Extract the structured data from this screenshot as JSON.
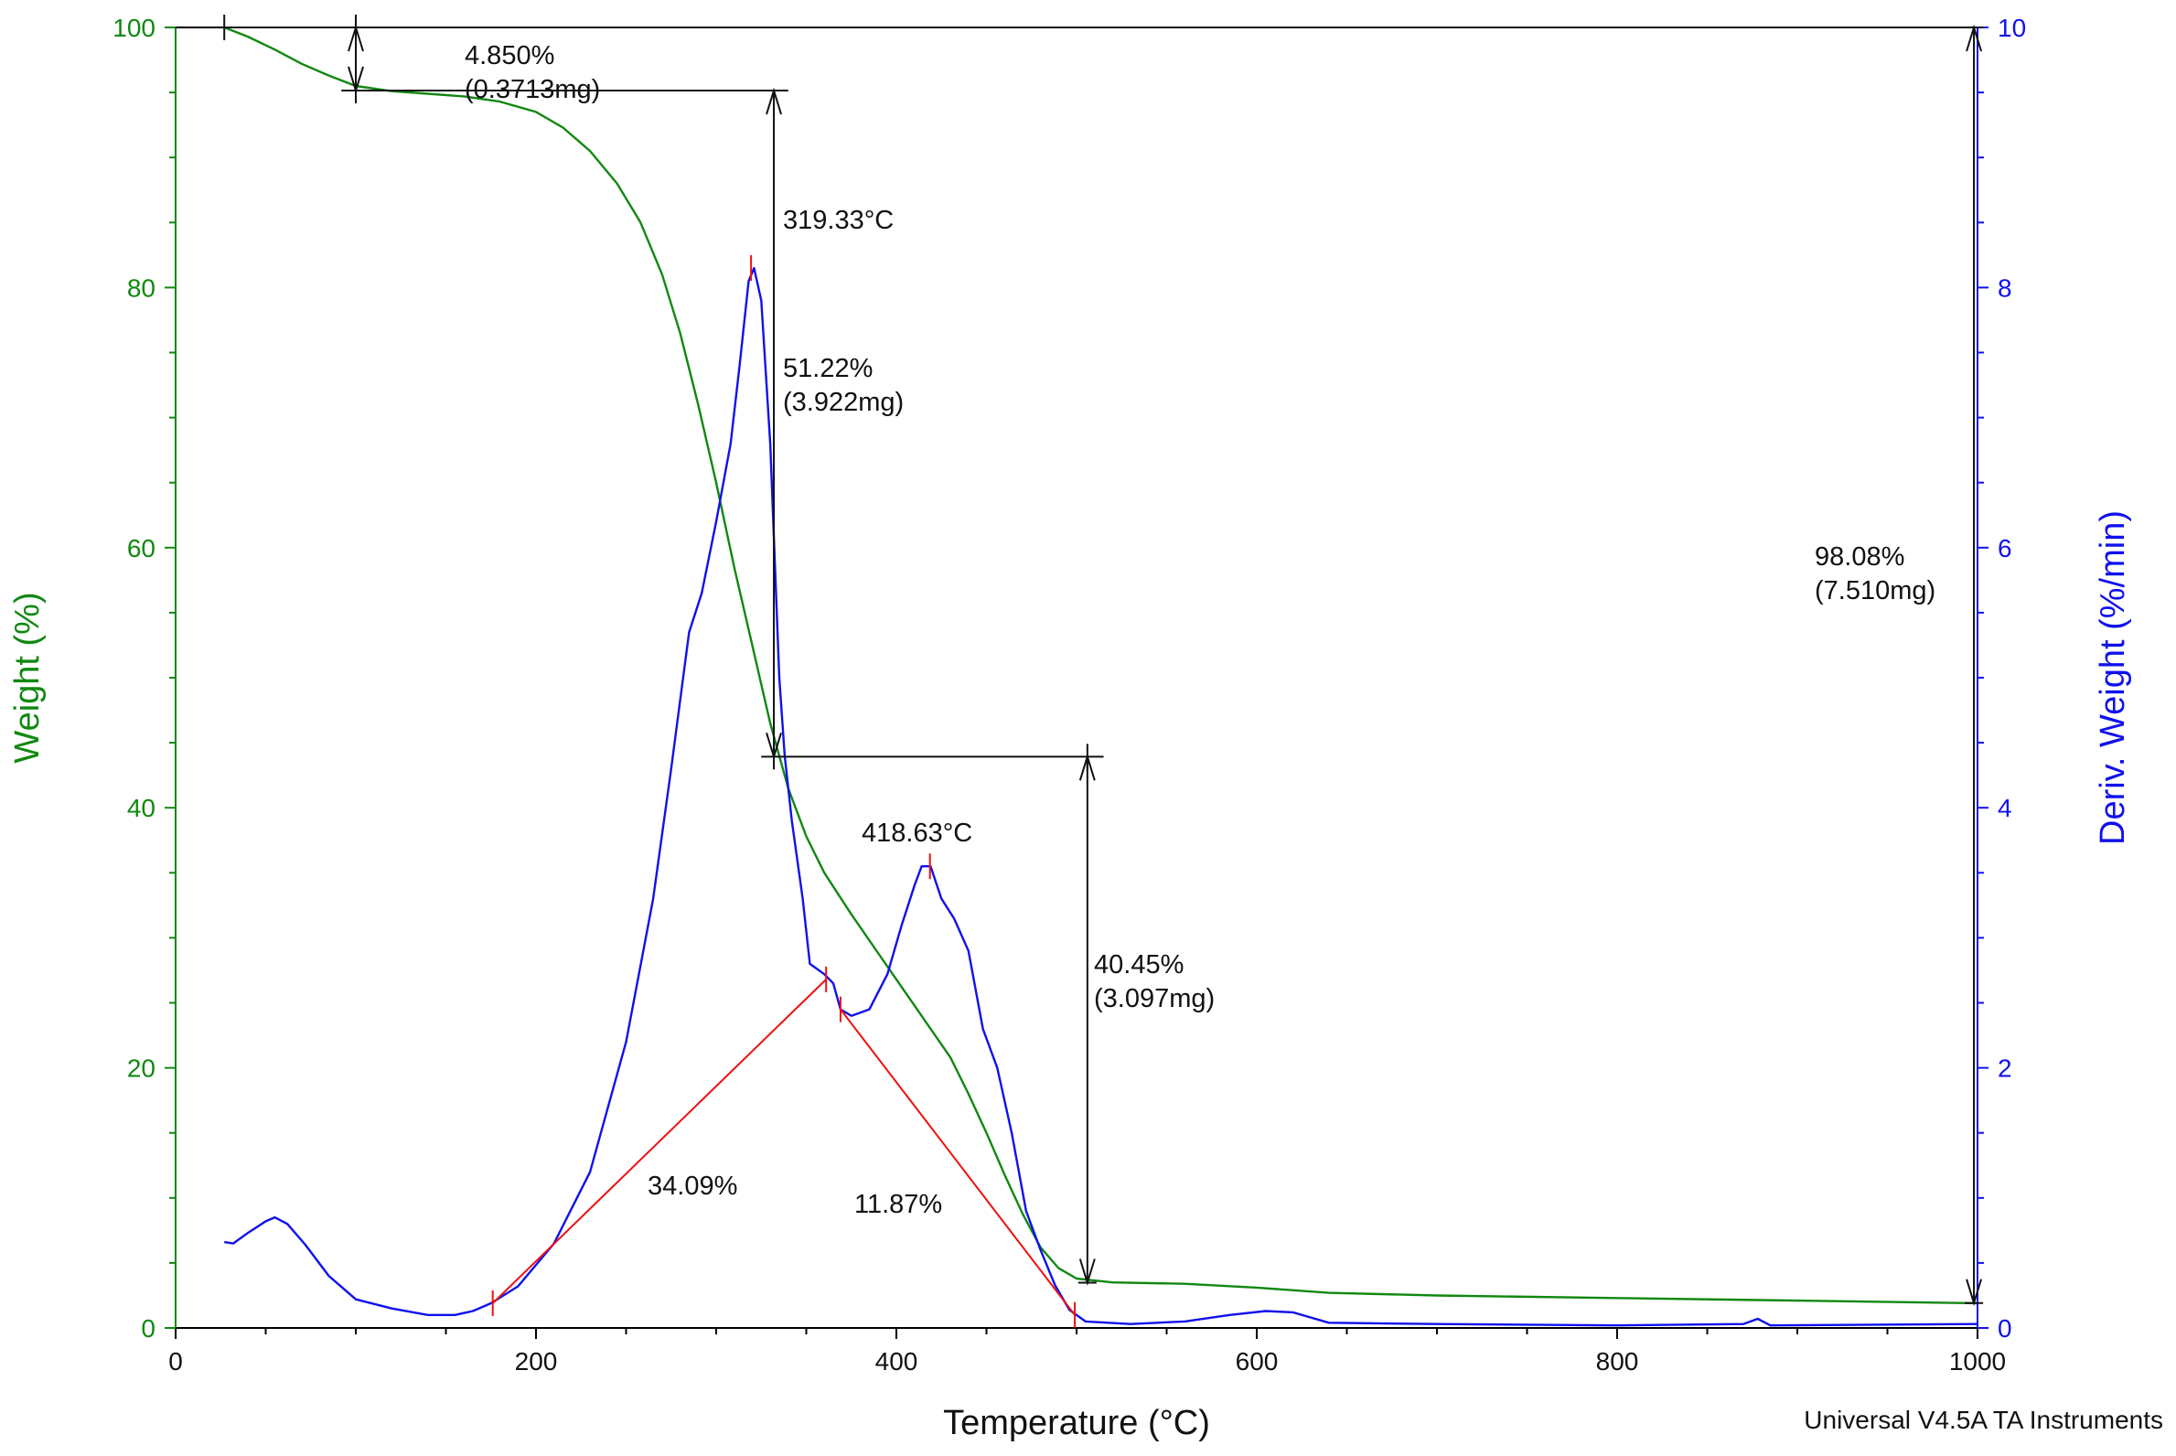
{
  "chart_data": {
    "type": "line",
    "xlabel": "Temperature (°C)",
    "ylabel_left": "Weight (%)",
    "ylabel_right": "Deriv. Weight (%/min)",
    "xlim": [
      0,
      1000
    ],
    "ylim_left": [
      0,
      100
    ],
    "ylim_right": [
      0,
      10
    ],
    "x_ticks": [
      0,
      200,
      400,
      600,
      800,
      1000
    ],
    "y_left_ticks": [
      0,
      20,
      40,
      60,
      80,
      100
    ],
    "y_right_ticks": [
      0,
      2,
      4,
      6,
      8,
      10
    ],
    "footer": "Universal V4.5A TA Instruments",
    "colors": {
      "weight": "#118811",
      "deriv": "#1010ee",
      "construct": "#ee1111",
      "annotation": "#111111"
    },
    "series": [
      {
        "name": "Weight",
        "axis": "left",
        "color": "#118811",
        "points": [
          [
            27,
            100
          ],
          [
            40,
            99.3
          ],
          [
            55,
            98.3
          ],
          [
            70,
            97.2
          ],
          [
            85,
            96.3
          ],
          [
            100,
            95.5
          ],
          [
            120,
            95.1
          ],
          [
            140,
            94.9
          ],
          [
            160,
            94.7
          ],
          [
            180,
            94.3
          ],
          [
            200,
            93.5
          ],
          [
            215,
            92.3
          ],
          [
            230,
            90.5
          ],
          [
            245,
            88.0
          ],
          [
            258,
            85.0
          ],
          [
            270,
            81.0
          ],
          [
            280,
            76.5
          ],
          [
            290,
            71.0
          ],
          [
            300,
            65.0
          ],
          [
            310,
            58.5
          ],
          [
            320,
            52.5
          ],
          [
            330,
            46.5
          ],
          [
            340,
            41.5
          ],
          [
            350,
            37.8
          ],
          [
            360,
            35.0
          ],
          [
            375,
            31.8
          ],
          [
            390,
            28.8
          ],
          [
            400,
            26.8
          ],
          [
            410,
            24.8
          ],
          [
            420,
            22.8
          ],
          [
            430,
            20.8
          ],
          [
            440,
            18.0
          ],
          [
            450,
            15.0
          ],
          [
            460,
            11.8
          ],
          [
            470,
            8.8
          ],
          [
            480,
            6.2
          ],
          [
            490,
            4.6
          ],
          [
            500,
            3.8
          ],
          [
            520,
            3.5
          ],
          [
            560,
            3.4
          ],
          [
            600,
            3.1
          ],
          [
            640,
            2.7
          ],
          [
            700,
            2.5
          ],
          [
            800,
            2.3
          ],
          [
            900,
            2.1
          ],
          [
            1000,
            1.9
          ]
        ]
      },
      {
        "name": "Deriv. Weight",
        "axis": "right",
        "color": "#1010ee",
        "points": [
          [
            27,
            0.66
          ],
          [
            32,
            0.65
          ],
          [
            40,
            0.73
          ],
          [
            50,
            0.82
          ],
          [
            55,
            0.85
          ],
          [
            62,
            0.8
          ],
          [
            72,
            0.64
          ],
          [
            85,
            0.4
          ],
          [
            100,
            0.22
          ],
          [
            120,
            0.15
          ],
          [
            140,
            0.1
          ],
          [
            155,
            0.1
          ],
          [
            165,
            0.13
          ],
          [
            175,
            0.19
          ],
          [
            190,
            0.32
          ],
          [
            210,
            0.65
          ],
          [
            230,
            1.2
          ],
          [
            250,
            2.2
          ],
          [
            265,
            3.3
          ],
          [
            275,
            4.3
          ],
          [
            285,
            5.35
          ],
          [
            292,
            5.65
          ],
          [
            300,
            6.2
          ],
          [
            308,
            6.8
          ],
          [
            313,
            7.4
          ],
          [
            318,
            8.05
          ],
          [
            321,
            8.15
          ],
          [
            325,
            7.9
          ],
          [
            330,
            6.8
          ],
          [
            335,
            5.0
          ],
          [
            338,
            4.4
          ],
          [
            342,
            3.9
          ],
          [
            348,
            3.3
          ],
          [
            352,
            2.8
          ],
          [
            360,
            2.72
          ],
          [
            365,
            2.65
          ],
          [
            369,
            2.45
          ],
          [
            375,
            2.4
          ],
          [
            385,
            2.45
          ],
          [
            395,
            2.72
          ],
          [
            403,
            3.1
          ],
          [
            410,
            3.4
          ],
          [
            414,
            3.55
          ],
          [
            419,
            3.55
          ],
          [
            425,
            3.3
          ],
          [
            432,
            3.15
          ],
          [
            440,
            2.9
          ],
          [
            448,
            2.3
          ],
          [
            456,
            2.0
          ],
          [
            464,
            1.5
          ],
          [
            472,
            0.9
          ],
          [
            480,
            0.6
          ],
          [
            488,
            0.33
          ],
          [
            496,
            0.14
          ],
          [
            505,
            0.05
          ],
          [
            530,
            0.03
          ],
          [
            560,
            0.05
          ],
          [
            585,
            0.1
          ],
          [
            605,
            0.13
          ],
          [
            620,
            0.12
          ],
          [
            640,
            0.04
          ],
          [
            700,
            0.03
          ],
          [
            800,
            0.02
          ],
          [
            870,
            0.03
          ],
          [
            878,
            0.07
          ],
          [
            885,
            0.02
          ],
          [
            1000,
            0.03
          ]
        ]
      }
    ],
    "annotations": [
      {
        "id": "step1",
        "text_lines": [
          "4.850%",
          "(0.3713mg)"
        ],
        "from_y": 100,
        "to_y": 95.15,
        "arrow_x": 100,
        "level_line": [
          [
            92,
            95.15
          ],
          [
            340,
            95.15
          ]
        ]
      },
      {
        "id": "step2",
        "text_lines": [
          "319.33°C"
        ]
      },
      {
        "id": "step3",
        "text_lines": [
          "51.22%",
          "(3.922mg)"
        ],
        "from_y": 95.15,
        "to_y": 43.93,
        "arrow_x": 332,
        "level_line": [
          [
            325,
            43.93
          ],
          [
            515,
            43.93
          ]
        ]
      },
      {
        "id": "step4",
        "text_lines": [
          "418.63°C"
        ]
      },
      {
        "id": "step5",
        "text_lines": [
          "40.45%",
          "(3.097mg)"
        ],
        "from_y": 43.93,
        "to_y": 3.48,
        "arrow_x": 506
      },
      {
        "id": "step6",
        "text_lines": [
          "98.08%",
          "(7.510mg)"
        ],
        "from_y": 100,
        "to_y": 1.92,
        "arrow_x": 998
      },
      {
        "id": "area1",
        "text_lines": [
          "34.09%"
        ]
      },
      {
        "id": "area2",
        "text_lines": [
          "11.87%"
        ]
      }
    ],
    "peak_markers": [
      {
        "label": "319.33°C",
        "x": 319.33,
        "y_right": 8.15
      },
      {
        "label": "418.63°C",
        "x": 418.63,
        "y_right": 3.55
      }
    ],
    "integration_lines": [
      {
        "points": [
          [
            176,
            0.19
          ],
          [
            361,
            2.68
          ]
        ]
      },
      {
        "points": [
          [
            369,
            2.45
          ],
          [
            499,
            0.1
          ]
        ]
      }
    ],
    "integration_markers": [
      {
        "x": 176,
        "y_right": 0.19
      },
      {
        "x": 361,
        "y_right": 2.68
      },
      {
        "x": 369,
        "y_right": 2.45
      },
      {
        "x": 499,
        "y_right": 0.1
      }
    ]
  }
}
